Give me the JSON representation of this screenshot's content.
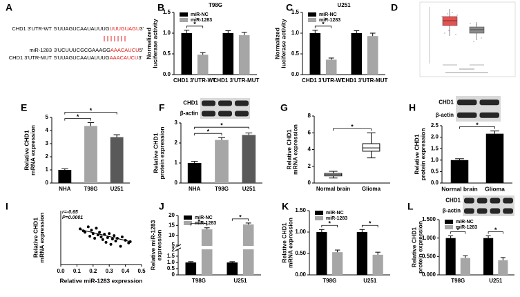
{
  "sequence_panel": {
    "panel": "A",
    "rows": [
      {
        "name": "CHD1 3'UTR-WT",
        "seq": "5'UUAGUCAAUAUUUG",
        "site": "UUUGUAGU",
        "end": "3'"
      },
      {
        "name": "miR-1283",
        "seq": "3'UCUUUCGCGAAAGG",
        "site": "AAACAUCU",
        "end": "5'"
      },
      {
        "name": "CHD1 3'UTR-MUT",
        "seq": "5'UUAGUCAAUAUUUG",
        "site": "AAACAUCU",
        "end": "3'"
      }
    ]
  },
  "image_panel": {
    "panel": "D"
  },
  "chart_data": [
    {
      "panel": "B",
      "type": "bar",
      "title": "T98G",
      "ylabel": [
        "Normalized",
        "luciferase activity"
      ],
      "categories": [
        "CHD1 3'UTR-WT",
        "CHD1 3'UTR-MUT"
      ],
      "series": [
        {
          "name": "miR-NC",
          "color": "#000000",
          "values": [
            1.0,
            1.0
          ],
          "errors": [
            0.07,
            0.06
          ]
        },
        {
          "name": "miR-1283",
          "color": "#a6a6a6",
          "values": [
            0.48,
            0.95
          ],
          "errors": [
            0.05,
            0.07
          ]
        }
      ],
      "ylim": [
        0,
        1.5
      ],
      "yticks": [
        {
          "value": 0,
          "label": "0.0"
        },
        0.5,
        {
          "value": 1,
          "label": "1.0"
        },
        1.5
      ],
      "legend": "upper left",
      "significance": [
        {
          "label": "*",
          "category": 0
        }
      ]
    },
    {
      "panel": "C",
      "type": "bar",
      "title": "U251",
      "ylabel": [
        "Normalized",
        "luciferase activity"
      ],
      "categories": [
        "CHD1 3'UTR-WT",
        "CHD1 3'UTR-MUT"
      ],
      "series": [
        {
          "name": "miR-NC",
          "color": "#000000",
          "values": [
            1.0,
            1.0
          ],
          "errors": [
            0.07,
            0.06
          ]
        },
        {
          "name": "miR-1283",
          "color": "#a6a6a6",
          "values": [
            0.36,
            0.93
          ],
          "errors": [
            0.04,
            0.07
          ]
        }
      ],
      "ylim": [
        0,
        1.5
      ],
      "yticks": [
        {
          "value": 0,
          "label": "0.0"
        },
        0.5,
        {
          "value": 1,
          "label": "1.0"
        },
        1.5
      ],
      "legend": "upper left",
      "significance": [
        {
          "label": "*",
          "category": 0
        }
      ]
    },
    {
      "panel": "E",
      "type": "bar",
      "ylabel": [
        "Relative CHD1",
        "mRNA expression"
      ],
      "categories": [
        "NHA",
        "T98G",
        "U251"
      ],
      "values": [
        1.0,
        4.35,
        3.5
      ],
      "errors": [
        0.08,
        0.25,
        0.18
      ],
      "colors": [
        "#000000",
        "#a6a6a6",
        "#595959"
      ],
      "ylim": [
        0,
        5
      ],
      "yticks": [
        0,
        1,
        2,
        3,
        4,
        5
      ],
      "significance": [
        {
          "label": "*",
          "from": 0,
          "to": 1
        },
        {
          "label": "*",
          "from": 0,
          "to": 2
        }
      ]
    },
    {
      "panel": "F",
      "type": "bar",
      "ylabel": [
        "Relative CHD1",
        "protein expression"
      ],
      "blot_labels": [
        "CHD1",
        "β-actin"
      ],
      "categories": [
        "NHA",
        "T98G",
        "U251"
      ],
      "values": [
        1.0,
        2.15,
        2.4
      ],
      "errors": [
        0.08,
        0.12,
        0.1
      ],
      "colors": [
        "#000000",
        "#a6a6a6",
        "#595959"
      ],
      "ylim": [
        0,
        3
      ],
      "yticks": [
        0,
        1,
        2,
        3
      ],
      "significance": [
        {
          "label": "*",
          "from": 0,
          "to": 1
        },
        {
          "label": "*",
          "from": 0,
          "to": 2
        }
      ]
    },
    {
      "panel": "G",
      "type": "box",
      "ylabel": [
        "Relative CHD1",
        "mRNA expression"
      ],
      "categories": [
        "Normal brain",
        "Glioma"
      ],
      "boxes": [
        {
          "min": 0.6,
          "q1": 0.85,
          "median": 1.0,
          "q3": 1.15,
          "max": 1.4
        },
        {
          "min": 3.0,
          "q1": 3.8,
          "median": 4.2,
          "q3": 4.7,
          "max": 6.0
        }
      ],
      "ylim": [
        0,
        8
      ],
      "yticks": [
        0,
        2,
        4,
        6,
        8
      ],
      "significance": [
        {
          "label": "*",
          "from": 0,
          "to": 1
        }
      ]
    },
    {
      "panel": "H",
      "type": "bar",
      "ylabel": [
        "Relative CHD1",
        "protein expression"
      ],
      "blot_labels": [
        "CHD1",
        "β-actin"
      ],
      "categories": [
        "Normal brain",
        "Glioma"
      ],
      "values": [
        1.0,
        2.15
      ],
      "errors": [
        0.06,
        0.12
      ],
      "colors": [
        "#000000",
        "#000000"
      ],
      "ylim": [
        0,
        2.5
      ],
      "yticks": [
        {
          "value": 0,
          "label": "0.0"
        },
        0.5,
        {
          "value": 1,
          "label": "1.0"
        },
        1.5,
        {
          "value": 2,
          "label": "2.0"
        },
        2.5
      ],
      "significance": [
        {
          "label": "*",
          "from": 0,
          "to": 1
        }
      ]
    },
    {
      "panel": "I",
      "type": "scatter",
      "ylabel": [
        "Relative CHD1",
        "mRNA expression"
      ],
      "xlabel": "Relative miR-1283 expression",
      "x": [
        0.12,
        0.14,
        0.15,
        0.17,
        0.18,
        0.19,
        0.2,
        0.21,
        0.22,
        0.23,
        0.24,
        0.25,
        0.26,
        0.27,
        0.28,
        0.29,
        0.3,
        0.31,
        0.32,
        0.33,
        0.34,
        0.35,
        0.37,
        0.38,
        0.4,
        0.42,
        0.43
      ],
      "y": [
        5.3,
        5.0,
        4.8,
        5.6,
        4.2,
        5.1,
        4.6,
        3.9,
        5.4,
        4.4,
        4.8,
        4.1,
        3.7,
        4.5,
        3.3,
        4.0,
        4.6,
        3.0,
        3.8,
        4.3,
        3.5,
        3.9,
        2.7,
        4.1,
        3.6,
        3.2,
        3.4
      ],
      "fit": {
        "x": [
          0.12,
          0.43
        ],
        "y": [
          5.2,
          3.4
        ]
      },
      "xlim": [
        0,
        0.5
      ],
      "xticks": [
        {
          "value": 0,
          "label": "0.0"
        },
        0.1,
        0.2,
        0.3,
        0.4,
        0.5
      ],
      "ylim": [
        0,
        8
      ],
      "annotations": [
        "r=-0.65",
        "P=0.0001"
      ]
    },
    {
      "panel": "J",
      "type": "bar",
      "ylabel": [
        "Relative miR-1283",
        "expression"
      ],
      "categories": [
        "T98G",
        "U251"
      ],
      "series": [
        {
          "name": "miR-NC",
          "color": "#000000",
          "values": [
            1.0,
            1.0
          ],
          "errors": [
            0.06,
            0.06
          ]
        },
        {
          "name": "miR-1283",
          "color": "#a6a6a6",
          "values": [
            13.0,
            15.5
          ],
          "errors": [
            0.8,
            0.7
          ]
        }
      ],
      "ylim": [
        0,
        20
      ],
      "axis_break": [
        2,
        5
      ],
      "yticks": [
        0,
        0.5,
        {
          "value": 1,
          "label": "1.0"
        },
        1.5,
        2,
        5,
        10,
        15,
        20
      ],
      "legend": "upper left",
      "significance": [
        {
          "label": "*",
          "category": 0
        },
        {
          "label": "*",
          "category": 1
        }
      ]
    },
    {
      "panel": "K",
      "type": "bar",
      "ylabel": [
        "Relative CHD1",
        "mRNA expression"
      ],
      "categories": [
        "T98G",
        "U251"
      ],
      "series": [
        {
          "name": "miR-NC",
          "color": "#000000",
          "values": [
            1.0,
            1.0
          ],
          "errors": [
            0.06,
            0.06
          ]
        },
        {
          "name": "miR-1283",
          "color": "#a6a6a6",
          "values": [
            0.53,
            0.47
          ],
          "errors": [
            0.05,
            0.06
          ]
        }
      ],
      "ylim": [
        0,
        1.5
      ],
      "yticks": [
        {
          "value": 0,
          "label": "0.00"
        },
        {
          "value": 0.5,
          "label": "0.50"
        },
        {
          "value": 1,
          "label": "1.00"
        },
        {
          "value": 1.5,
          "label": "1.50"
        }
      ],
      "legend": "upper left",
      "significance": [
        {
          "label": "*",
          "category": 0
        },
        {
          "label": "*",
          "category": 1
        }
      ]
    },
    {
      "panel": "L",
      "type": "bar",
      "ylabel": [
        "Relative CHD1",
        "protein expression"
      ],
      "blot_labels": [
        "CHD1",
        "β-actin"
      ],
      "categories": [
        "T98G",
        "U251"
      ],
      "series": [
        {
          "name": "miR-NC",
          "color": "#000000",
          "values": [
            1.0,
            1.0
          ],
          "errors": [
            0.06,
            0.06
          ]
        },
        {
          "name": "miR-1283",
          "color": "#a6a6a6",
          "values": [
            0.46,
            0.4
          ],
          "errors": [
            0.06,
            0.07
          ]
        }
      ],
      "ylim": [
        0,
        1.5
      ],
      "yticks": [
        {
          "value": 0,
          "label": "0.000"
        },
        {
          "value": 0.5,
          "label": "0.500"
        },
        {
          "value": 1,
          "label": "1.000"
        },
        {
          "value": 1.5,
          "label": "1.500"
        }
      ],
      "legend": "upper left",
      "significance": [
        {
          "label": "*",
          "category": 0
        },
        {
          "label": "*",
          "category": 1
        }
      ]
    }
  ]
}
